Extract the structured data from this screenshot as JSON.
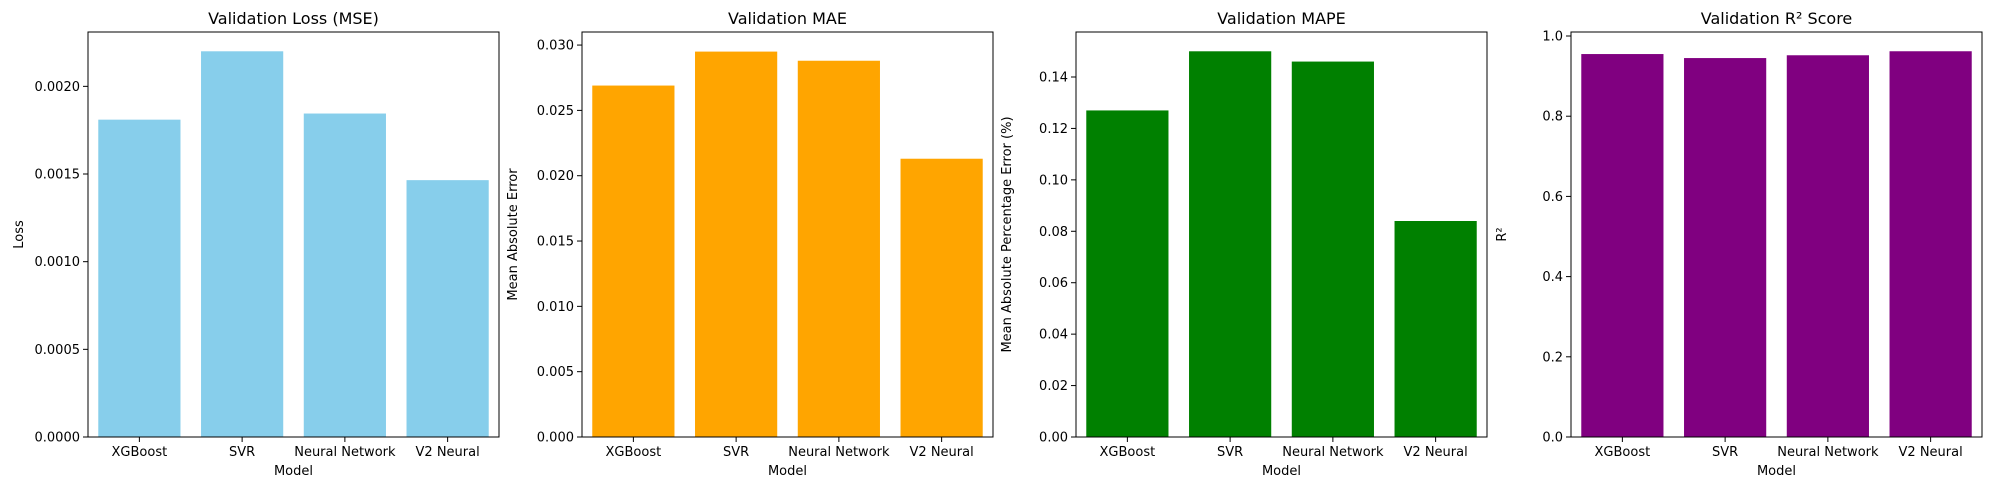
{
  "chart_data": [
    {
      "type": "bar",
      "title": "Validation Loss (MSE)",
      "xlabel": "Model",
      "ylabel": "Loss",
      "categories": [
        "XGBoost",
        "SVR",
        "Neural Network",
        "V2 Neural"
      ],
      "values": [
        0.00181,
        0.0022,
        0.001845,
        0.001465
      ],
      "ylim": [
        0,
        0.00231
      ],
      "yticks": [
        0,
        0.0005,
        0.001,
        0.0015,
        0.002
      ],
      "ytick_labels": [
        "0.0000",
        "0.0005",
        "0.0010",
        "0.0015",
        "0.0020"
      ],
      "color": "#87ceeb"
    },
    {
      "type": "bar",
      "title": "Validation MAE",
      "xlabel": "Model",
      "ylabel": "Mean Absolute Error",
      "categories": [
        "XGBoost",
        "SVR",
        "Neural Network",
        "V2 Neural"
      ],
      "values": [
        0.0269,
        0.0295,
        0.0288,
        0.0213
      ],
      "ylim": [
        0,
        0.031
      ],
      "yticks": [
        0,
        0.005,
        0.01,
        0.015,
        0.02,
        0.025,
        0.03
      ],
      "ytick_labels": [
        "0.000",
        "0.005",
        "0.010",
        "0.015",
        "0.020",
        "0.025",
        "0.030"
      ],
      "color": "#ffa500"
    },
    {
      "type": "bar",
      "title": "Validation MAPE",
      "xlabel": "Model",
      "ylabel": "Mean Absolute Percentage Error (%)",
      "categories": [
        "XGBoost",
        "SVR",
        "Neural Network",
        "V2 Neural"
      ],
      "values": [
        0.127,
        0.15,
        0.146,
        0.084
      ],
      "ylim": [
        0,
        0.1575
      ],
      "yticks": [
        0,
        0.02,
        0.04,
        0.06,
        0.08,
        0.1,
        0.12,
        0.14
      ],
      "ytick_labels": [
        "0.00",
        "0.02",
        "0.04",
        "0.06",
        "0.08",
        "0.10",
        "0.12",
        "0.14"
      ],
      "color": "#008000"
    },
    {
      "type": "bar",
      "title": "Validation R² Score",
      "xlabel": "Model",
      "ylabel": "R²",
      "categories": [
        "XGBoost",
        "SVR",
        "Neural Network",
        "V2 Neural"
      ],
      "values": [
        0.955,
        0.945,
        0.952,
        0.962
      ],
      "ylim": [
        0,
        1.01
      ],
      "yticks": [
        0,
        0.2,
        0.4,
        0.6,
        0.8,
        1.0
      ],
      "ytick_labels": [
        "0.0",
        "0.2",
        "0.4",
        "0.6",
        "0.8",
        "1.0"
      ],
      "color": "#800080"
    }
  ]
}
